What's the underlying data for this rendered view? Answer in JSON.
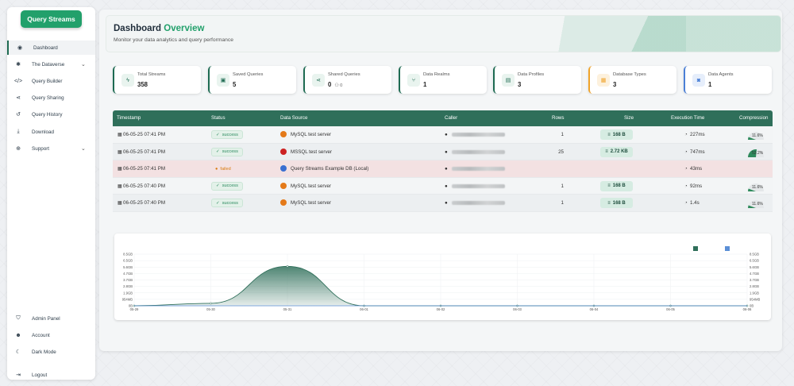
{
  "app": {
    "brand": "Query Streams"
  },
  "sidebar": {
    "items": [
      {
        "label": "Dashboard",
        "icon": "palette-icon"
      },
      {
        "label": "The Dataverse",
        "icon": "gear-icon"
      },
      {
        "label": "Query Builder",
        "icon": "code-icon"
      },
      {
        "label": "Query Sharing",
        "icon": "share-icon"
      },
      {
        "label": "Query History",
        "icon": "history-icon"
      },
      {
        "label": "Download",
        "icon": "download-icon"
      },
      {
        "label": "Support",
        "icon": "lifebuoy-icon"
      }
    ],
    "bottom": [
      {
        "label": "Admin Panel",
        "icon": "shield-icon"
      },
      {
        "label": "Account",
        "icon": "user-gear-icon"
      },
      {
        "label": "Dark Mode",
        "icon": "moon-icon"
      },
      {
        "label": "Logout",
        "icon": "logout-icon"
      }
    ]
  },
  "header": {
    "title_a": "Dashboard",
    "title_b": "Overview",
    "subtitle": "Monitor your data analytics and query performance"
  },
  "cards": [
    {
      "label": "Total Streams",
      "value": "358",
      "icon": "bolt-icon"
    },
    {
      "label": "Saved Queries",
      "value": "5",
      "icon": "save-icon"
    },
    {
      "label": "Shared Queries",
      "value": "0",
      "value2": "0",
      "icon": "share-icon"
    },
    {
      "label": "Data Realms",
      "value": "1",
      "icon": "branch-icon"
    },
    {
      "label": "Data Profiles",
      "value": "3",
      "icon": "database-icon"
    },
    {
      "label": "Database Types",
      "value": "3",
      "icon": "server-icon"
    },
    {
      "label": "Data Agents",
      "value": "1",
      "icon": "robot-icon"
    }
  ],
  "table": {
    "headers": [
      "Timestamp",
      "Status",
      "Data Source",
      "Caller",
      "Rows",
      "Size",
      "Execution Time",
      "Compression"
    ],
    "rows": [
      {
        "timestamp": "06-05-25 07:41 PM",
        "status": "success",
        "source": "MySQL test server",
        "rows": "1",
        "size": "168 B",
        "time": "227ms",
        "compression": "11.6%",
        "comp_frac": 0.116
      },
      {
        "timestamp": "06-05-25 07:41 PM",
        "status": "success",
        "source": "MSSQL test server",
        "rows": "25",
        "size": "2.72 KB",
        "time": "747ms",
        "compression": "53.2%",
        "comp_frac": 0.532
      },
      {
        "timestamp": "06-05-25 07:41 PM",
        "status": "failed",
        "source": "Query Streams Example DB (Local)",
        "rows": "",
        "size": "",
        "time": "43ms",
        "compression": "",
        "comp_frac": 0
      },
      {
        "timestamp": "06-05-25 07:40 PM",
        "status": "success",
        "source": "MySQL test server",
        "rows": "1",
        "size": "168 B",
        "time": "92ms",
        "compression": "11.6%",
        "comp_frac": 0.116
      },
      {
        "timestamp": "06-05-25 07:40 PM",
        "status": "success",
        "source": "MySQL test server",
        "rows": "1",
        "size": "168 B",
        "time": "1.4s",
        "compression": "11.6%",
        "comp_frac": 0.116
      }
    ]
  },
  "colors": {
    "accent": "#22a06b",
    "dark": "#2f6f5a",
    "warn": "#f0a329",
    "info": "#4a7fd6"
  },
  "chart_data": {
    "type": "area",
    "x": [
      "05-29",
      "05-30",
      "05-31",
      "06-01",
      "06-02",
      "06-03",
      "06-04",
      "06-05",
      "06-06"
    ],
    "series": [
      {
        "name": "",
        "values": [
          0,
          0.4,
          6.5,
          0,
          0,
          0,
          0,
          0,
          0
        ]
      },
      {
        "name": "",
        "values": [
          0,
          0,
          0,
          0,
          0,
          0,
          0,
          0,
          0
        ]
      }
    ],
    "y_ticks_left": [
      "8.5GB",
      "6.5GB",
      "5.6GB",
      "4.7GB",
      "3.7GB",
      "2.8GB",
      "1.9GB",
      "954MB",
      "0B"
    ],
    "y_ticks_right": [
      "8.5GB",
      "6.5GB",
      "5.6GB",
      "4.7GB",
      "3.7GB",
      "2.8GB",
      "1.9GB",
      "954MB",
      "0B"
    ],
    "ylim": [
      0,
      8.5
    ],
    "legend": "top-right",
    "series_colors": [
      "#2f6f5a",
      "#5b8fd6"
    ]
  }
}
